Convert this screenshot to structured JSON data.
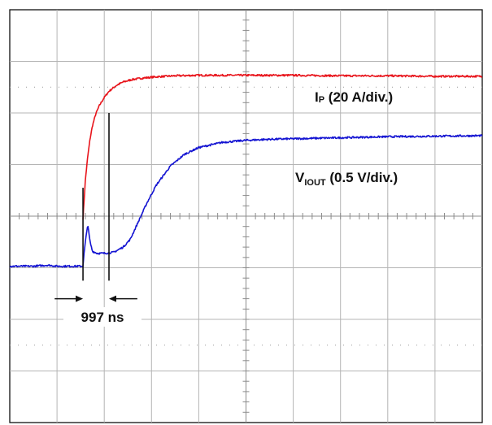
{
  "chart_data": {
    "type": "line",
    "title": "",
    "xlabel": "",
    "ylabel": "",
    "grid": true,
    "grid_divisions": {
      "x": 10,
      "y": 8
    },
    "x_unit": "div",
    "y_unit": "div",
    "xlim": [
      0,
      10
    ],
    "ylim": [
      -4,
      4
    ],
    "series": [
      {
        "name": "I",
        "name_subscript": "P",
        "scale": " (20 A/div.)",
        "color": "#e8141b",
        "x": [
          1.55,
          1.57,
          1.6,
          1.65,
          1.7,
          1.75,
          1.82,
          1.9,
          2.0,
          2.1,
          2.25,
          2.4,
          2.6,
          2.85,
          3.1,
          3.5,
          4.0,
          5.0,
          6.0,
          7.0,
          8.0,
          9.0,
          10.0
        ],
        "y": [
          -0.05,
          0.25,
          0.7,
          1.15,
          1.5,
          1.75,
          1.98,
          2.15,
          2.3,
          2.42,
          2.53,
          2.6,
          2.65,
          2.68,
          2.7,
          2.72,
          2.73,
          2.73,
          2.73,
          2.72,
          2.72,
          2.71,
          2.71
        ]
      },
      {
        "name": "V",
        "name_subscript": "IOUT",
        "scale": " (0.5 V/div.)",
        "color": "#1414d2",
        "x": [
          0.0,
          0.5,
          0.8,
          1.0,
          1.3,
          1.55,
          1.57,
          1.6,
          1.63,
          1.65,
          1.67,
          1.7,
          1.75,
          1.85,
          2.0,
          2.2,
          2.4,
          2.55,
          2.7,
          2.9,
          3.1,
          3.4,
          3.7,
          4.0,
          4.5,
          5.0,
          5.5,
          6.0,
          7.0,
          8.0,
          9.0,
          10.0
        ],
        "y": [
          -0.97,
          -0.97,
          -0.95,
          -0.97,
          -0.97,
          -0.97,
          -0.75,
          -0.5,
          -0.3,
          -0.15,
          -0.3,
          -0.5,
          -0.68,
          -0.72,
          -0.72,
          -0.7,
          -0.6,
          -0.45,
          -0.15,
          0.25,
          0.6,
          0.97,
          1.2,
          1.33,
          1.43,
          1.47,
          1.49,
          1.5,
          1.52,
          1.54,
          1.55,
          1.56
        ]
      }
    ],
    "annotations": [
      {
        "text": "997 ns",
        "x_start": 1.55,
        "x_end": 2.1,
        "y": -1.6
      }
    ]
  }
}
